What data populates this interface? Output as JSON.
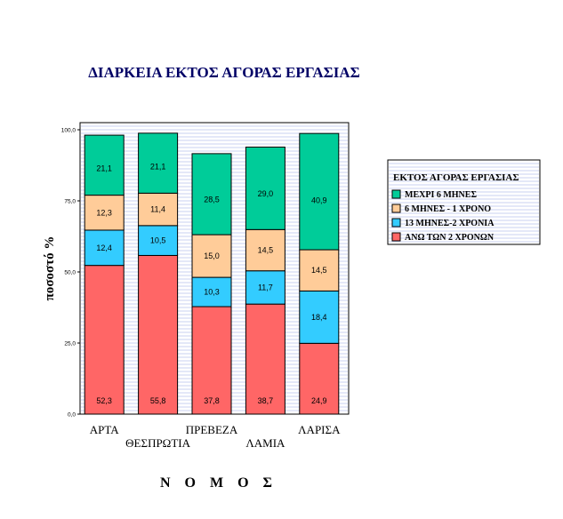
{
  "chart_data": {
    "type": "bar",
    "stacked": true,
    "title": "ΔΙΑΡΚΕΙΑ ΕΚΤΟΣ ΑΓΟΡΑΣ ΕΡΓΑΣΙΑΣ",
    "xlabel": "Ν Ο Μ Ο Σ",
    "ylabel": "ποσοστό %",
    "ylim": [
      0,
      100
    ],
    "yticks": [
      "0,0",
      "25,0",
      "50,0",
      "75,0",
      "100,0"
    ],
    "ytick_values": [
      0,
      25,
      50,
      75,
      100
    ],
    "grid": true,
    "legend_position": "right",
    "legend_title": "ΕΚΤΟΣ ΑΓΟΡΑΣ ΕΡΓΑΣΙΑΣ",
    "categories": [
      "ΑΡΤΑ",
      "ΘΕΣΠΡΩΤΙΑ",
      "ΠΡΕΒΕΖΑ",
      "ΛΑΜΙΑ",
      "ΛΑΡΙΣΑ"
    ],
    "series": [
      {
        "name": "ΑΝΩ ΤΩΝ 2 ΧΡΟΝΩΝ",
        "color": "#FF6666",
        "values": [
          52.3,
          55.8,
          37.8,
          38.7,
          24.9
        ],
        "labels": [
          "52,3",
          "55,8",
          "37,8",
          "38,7",
          "24,9"
        ]
      },
      {
        "name": "13 ΜΗΝΕΣ-2 ΧΡΟΝΙΑ",
        "color": "#33CCFF",
        "values": [
          12.4,
          10.5,
          10.3,
          11.7,
          18.4
        ],
        "labels": [
          "12,4",
          "10,5",
          "10,3",
          "11,7",
          "18,4"
        ]
      },
      {
        "name": "6 ΜΗΝΕΣ - 1 ΧΡΟΝΟ",
        "color": "#FFCC99",
        "values": [
          12.3,
          11.4,
          15.0,
          14.5,
          14.5
        ],
        "labels": [
          "12,3",
          "11,4",
          "15,0",
          "14,5",
          "14,5"
        ]
      },
      {
        "name": "ΜΕΧΡΙ 6 ΜΗΝΕΣ",
        "color": "#00CC99",
        "values": [
          21.1,
          21.1,
          28.5,
          29.0,
          40.9
        ],
        "labels": [
          "21,1",
          "21,1",
          "28,5",
          "29,0",
          "40,9"
        ]
      }
    ],
    "legend_order": [
      3,
      2,
      1,
      0
    ]
  }
}
